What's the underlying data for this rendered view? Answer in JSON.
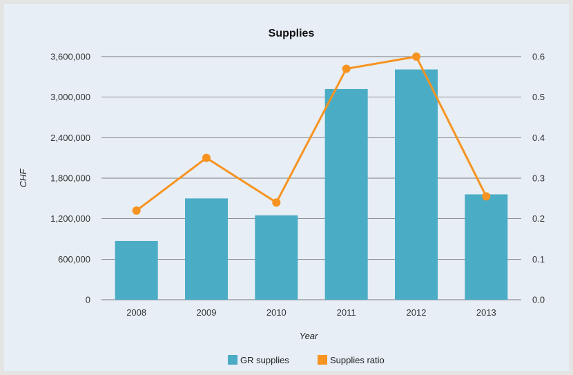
{
  "chart_data": {
    "type": "bar",
    "title": "Supplies",
    "xlabel": "Year",
    "ylabel": "CHF",
    "categories": [
      "2008",
      "2009",
      "2010",
      "2011",
      "2012",
      "2013"
    ],
    "series": [
      {
        "name": "GR supplies",
        "type": "bar",
        "axis": "left",
        "color": "#4bacc6",
        "values": [
          870000,
          1500000,
          1250000,
          3120000,
          3410000,
          1560000
        ]
      },
      {
        "name": "Supplies ratio",
        "type": "line",
        "axis": "right",
        "color": "#f79320",
        "values": [
          0.22,
          0.35,
          0.24,
          0.57,
          0.6,
          0.255
        ]
      }
    ],
    "y_left": {
      "min": 0,
      "max": 3600000,
      "step": 600000,
      "tick_labels": [
        "0",
        "600,000",
        "1,200,000",
        "1,800,000",
        "2,400,000",
        "3,000,000",
        "3,600,000"
      ]
    },
    "y_right": {
      "min": 0,
      "max": 0.6,
      "step": 0.1,
      "tick_labels": [
        "0.0",
        "0.1",
        "0.2",
        "0.3",
        "0.4",
        "0.5",
        "0.6"
      ]
    },
    "grid": true,
    "legend_position": "bottom-center"
  }
}
